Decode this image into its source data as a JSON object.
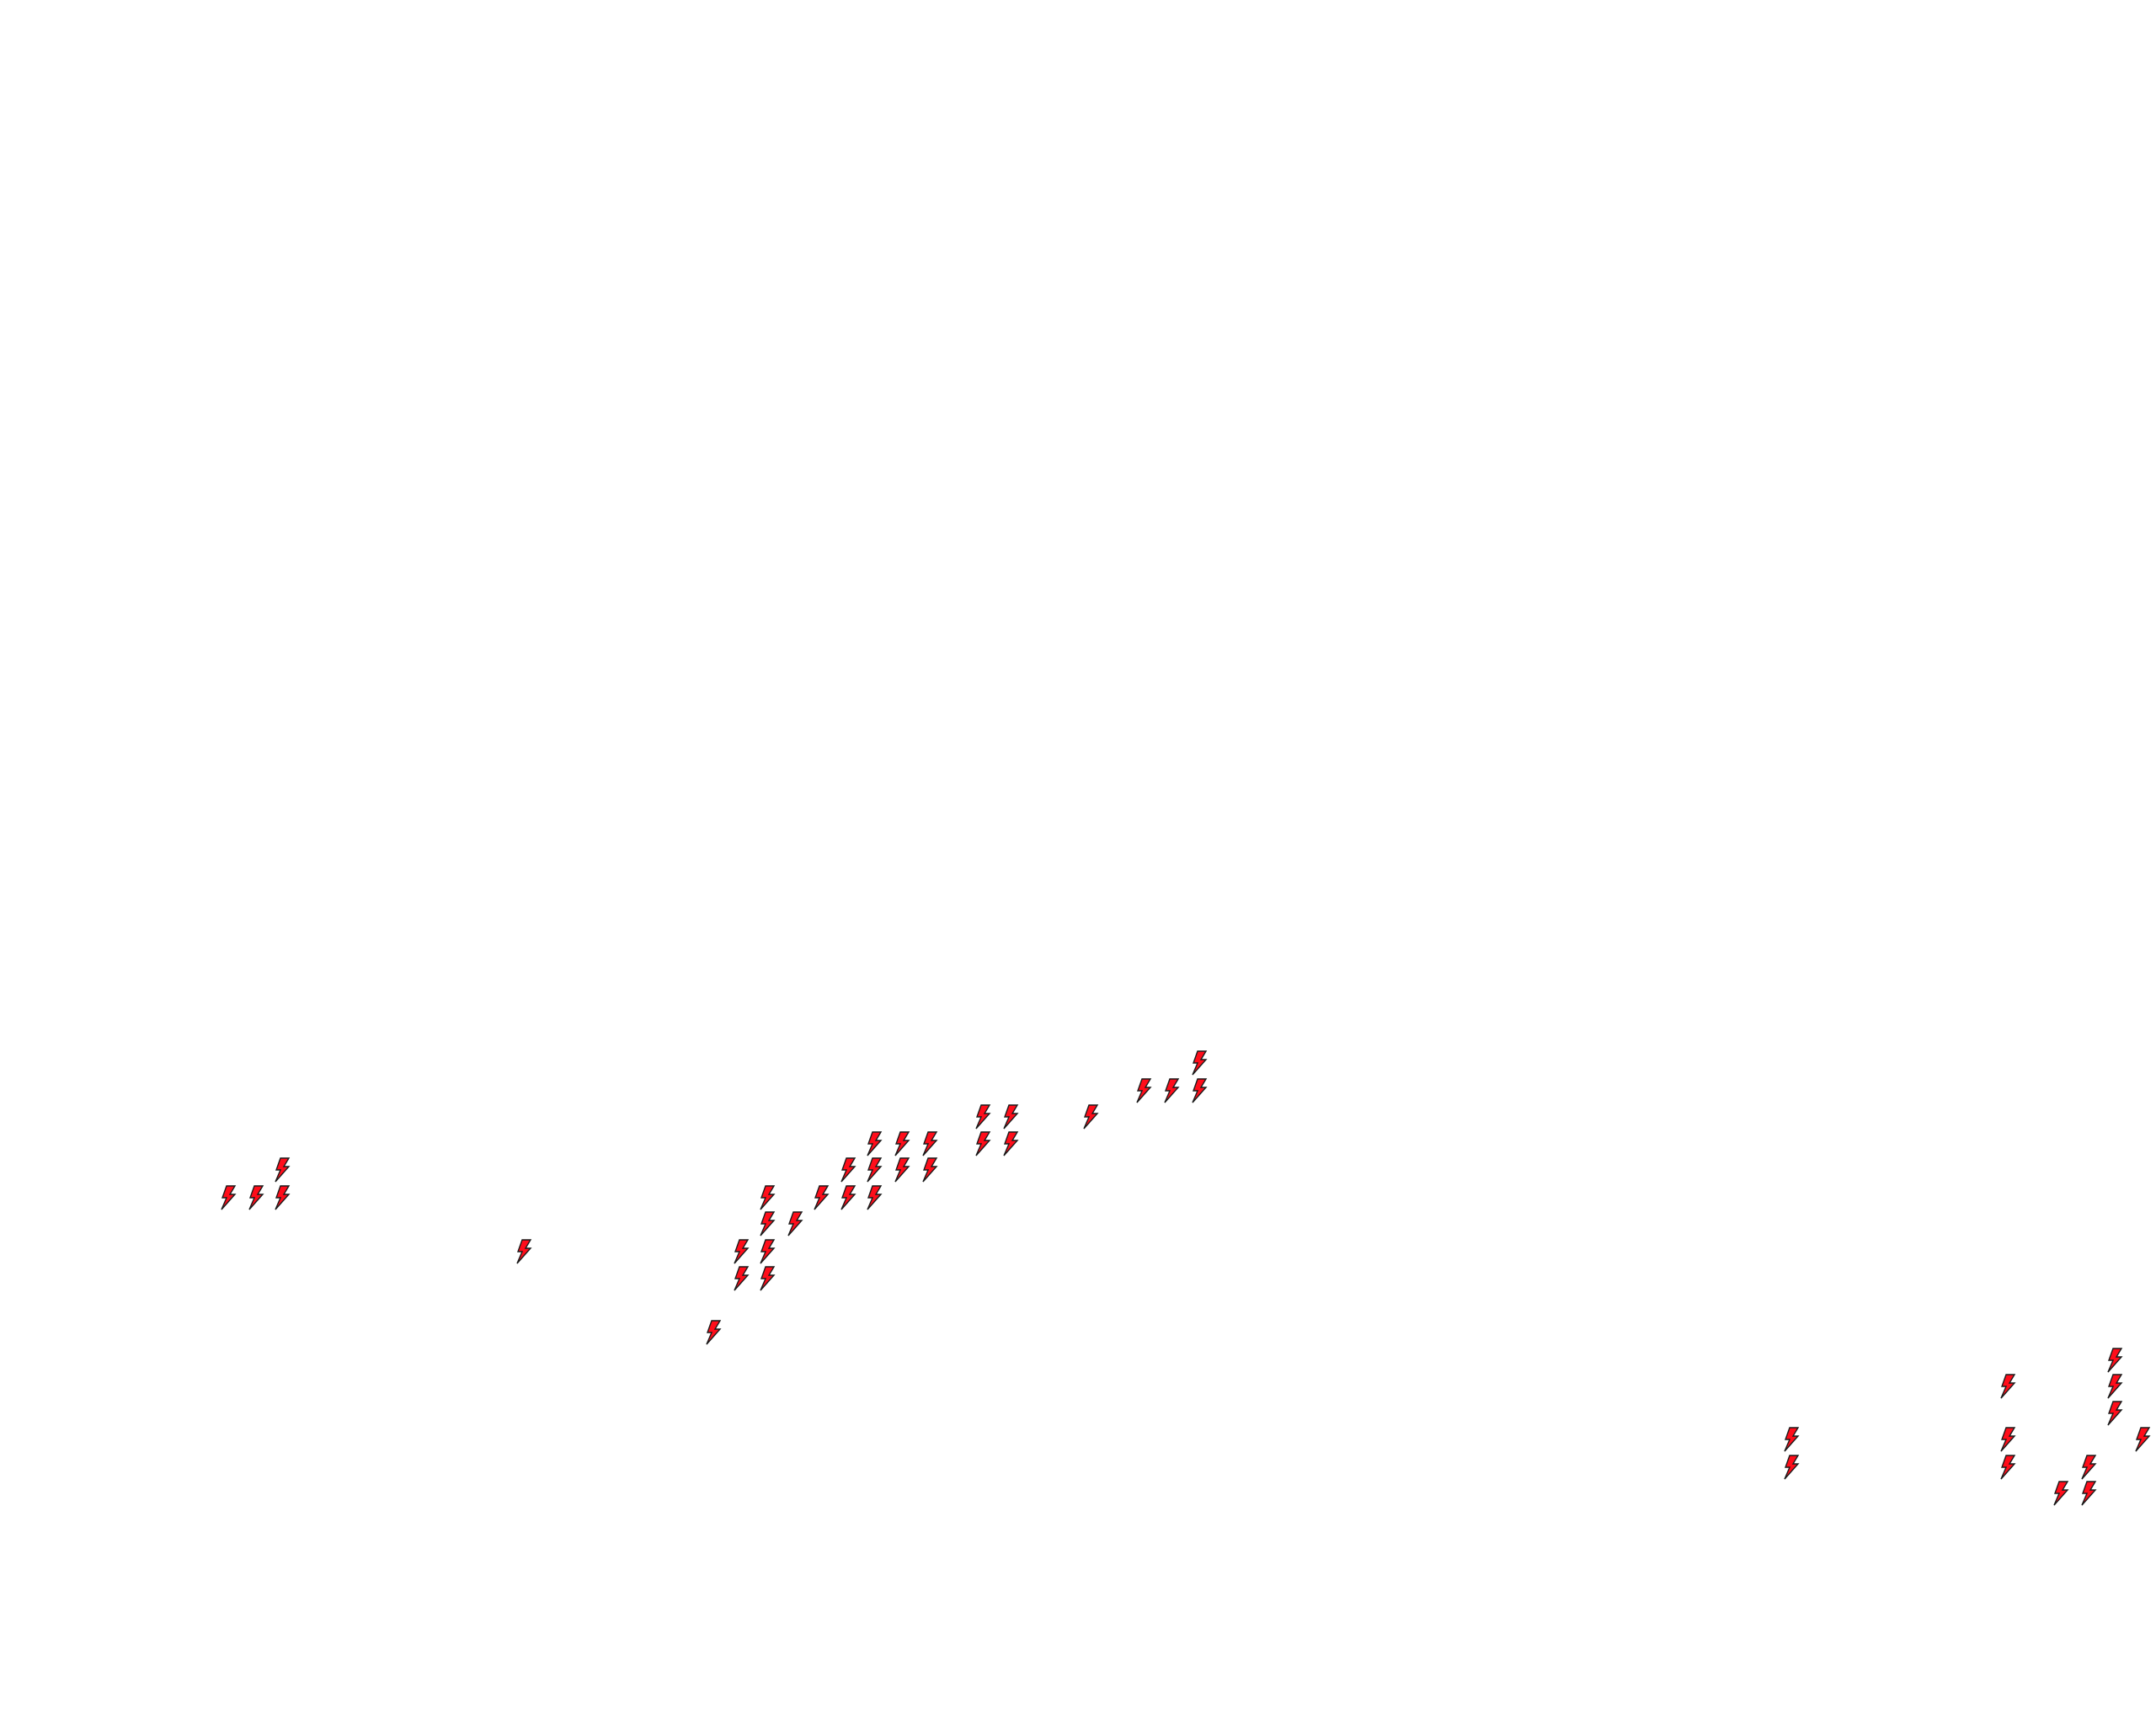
{
  "map": {
    "layer": "lightning-strikes",
    "marker_icon": "lightning-bolt-icon",
    "marker_fill": "#ff0d1a",
    "marker_stroke": "#1a1a1a",
    "background": "#ffffff"
  }
}
